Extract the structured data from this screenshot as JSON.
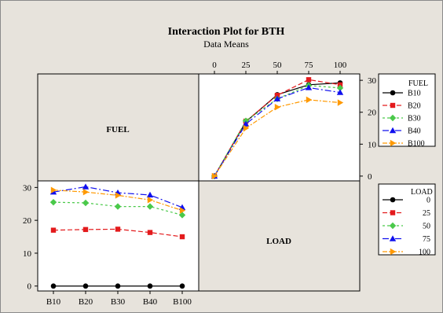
{
  "chart_data": {
    "type": "line",
    "title": "Interaction Plot for BTH",
    "subtitle": "Data Means",
    "factors": {
      "fuel": {
        "label": "FUEL",
        "levels": [
          "B10",
          "B20",
          "B30",
          "B40",
          "B100"
        ]
      },
      "load": {
        "label": "LOAD",
        "levels": [
          "0",
          "25",
          "50",
          "75",
          "100"
        ]
      }
    },
    "yticks": [
      0,
      10,
      20,
      30
    ],
    "ylim": [
      -1.5,
      32
    ],
    "grid": false,
    "series_colors": [
      "#000000",
      "#e31a1c",
      "#4ac94a",
      "#1010ee",
      "#ff9900"
    ],
    "series_markers": [
      "circle",
      "square",
      "diamond",
      "triangle",
      "triangle-right"
    ],
    "means": [
      [
        0,
        17.0,
        25.5,
        28.6,
        29.2
      ],
      [
        0,
        17.2,
        25.3,
        30.2,
        28.6
      ],
      [
        0,
        17.3,
        24.2,
        28.4,
        27.6
      ],
      [
        0,
        16.3,
        24.2,
        27.7,
        26.2
      ],
      [
        0,
        15.0,
        21.6,
        23.9,
        23.0
      ]
    ]
  }
}
